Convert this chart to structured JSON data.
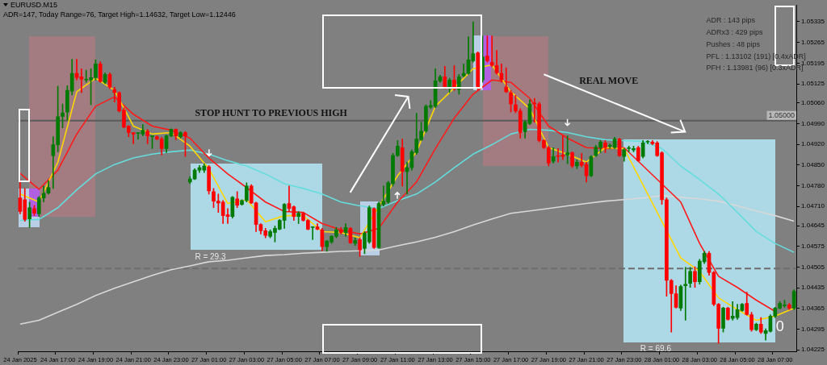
{
  "chart_data": {
    "type": "candlestick",
    "title": "EURUSD.M15",
    "subtitle": "ADR=147, Today Range=76, Target High=1.14632, Target Low=1.12446",
    "categories": [
      "24 Jan 2025",
      null,
      null,
      null,
      null,
      null,
      null,
      null,
      "24 Jan 17:00",
      null,
      null,
      null,
      null,
      null,
      null,
      null,
      "24 Jan 19:00",
      null,
      null,
      null,
      null,
      null,
      null,
      null,
      "24 Jan 21:00",
      null,
      null,
      null,
      null,
      null,
      null,
      null,
      "24 Jan 23:00",
      null,
      null,
      null,
      null,
      null,
      null,
      null,
      "27 Jan 01:00",
      null,
      null,
      null,
      null,
      null,
      null,
      null,
      "27 Jan 03:00",
      null,
      null,
      null,
      null,
      null,
      null,
      null,
      "27 Jan 05:00",
      null,
      null,
      null,
      null,
      null,
      null,
      null,
      "27 Jan 07:00",
      null,
      null,
      null,
      null,
      null,
      null,
      null,
      "27 Jan 09:00",
      null,
      null,
      null,
      null,
      null,
      null,
      null,
      "27 Jan 11:00",
      null,
      null,
      null,
      null,
      null,
      null,
      null,
      "27 Jan 13:00",
      null,
      null,
      null,
      null,
      null,
      null,
      null,
      "27 Jan 15:00",
      null,
      null,
      null,
      null,
      null,
      null,
      null,
      "27 Jan 17:00",
      null,
      null,
      null,
      null,
      null,
      null,
      null,
      "27 Jan 19:00",
      null,
      null,
      null,
      null,
      null,
      null,
      null,
      "27 Jan 21:00",
      null,
      null,
      null,
      null,
      null,
      null,
      null,
      "27 Jan 23:00",
      null,
      null,
      null,
      null,
      null,
      null,
      null,
      "28 Jan 01:00",
      null,
      null,
      null,
      null,
      null,
      null,
      null,
      "28 Jan 03:00",
      null,
      null,
      null,
      null,
      null,
      null,
      null,
      "28 Jan 05:00",
      null,
      null,
      null,
      null,
      null,
      null,
      null,
      "28 Jan 07:00",
      null,
      null,
      null,
      null
    ],
    "ohlc": [
      [
        1.04739,
        1.04801,
        1.04685,
        1.04693
      ],
      [
        1.04733,
        1.04771,
        1.0466,
        1.04666
      ],
      [
        1.04668,
        1.04725,
        1.04639,
        1.04706
      ],
      [
        1.04703,
        1.04714,
        1.04679,
        1.04687
      ],
      [
        1.04685,
        1.04744,
        1.04676,
        1.04739
      ],
      [
        1.04739,
        1.04779,
        1.04725,
        1.04755
      ],
      [
        1.04755,
        1.04798,
        1.04752,
        1.04774
      ],
      [
        1.04882,
        1.04946,
        1.04771,
        1.04919
      ],
      [
        1.04919,
        1.05117,
        1.04895,
        1.05014
      ],
      [
        1.05014,
        1.05057,
        1.04976,
        1.05027
      ],
      [
        1.0503,
        1.05119,
        1.05003,
        1.05103
      ],
      [
        1.051,
        1.05208,
        1.05087,
        1.0516
      ],
      [
        1.0516,
        1.05208,
        1.05138,
        1.05146
      ],
      [
        1.05149,
        1.05176,
        1.05095,
        1.05141
      ],
      [
        1.05138,
        1.05171,
        1.0513,
        1.05138
      ],
      [
        1.05138,
        1.05176,
        1.05054,
        1.05146
      ],
      [
        1.05146,
        1.05206,
        1.05138,
        1.05192
      ],
      [
        1.05192,
        1.052,
        1.0513,
        1.05133
      ],
      [
        1.0513,
        1.05162,
        1.05125,
        1.05157
      ],
      [
        1.05157,
        1.05162,
        1.05108,
        1.05114
      ],
      [
        1.05106,
        1.05114,
        1.05063,
        1.05095
      ],
      [
        1.05095,
        1.05098,
        1.0503,
        1.05033
      ],
      [
        1.05036,
        1.05044,
        1.04976,
        1.04979
      ],
      [
        1.04982,
        1.04984,
        1.04946,
        1.0496
      ],
      [
        1.0496,
        1.0496,
        1.04922,
        1.04955
      ],
      [
        1.04957,
        1.0496,
        1.04938,
        1.04957
      ],
      [
        1.04955,
        1.04987,
        1.04949,
        1.04968
      ],
      [
        1.04965,
        1.04971,
        1.04922,
        1.04949
      ],
      [
        1.04946,
        1.04949,
        1.04906,
        1.04946
      ],
      [
        1.04946,
        1.04949,
        1.04936,
        1.04938
      ],
      [
        1.04938,
        1.04944,
        1.04884,
        1.04906
      ],
      [
        1.04906,
        1.04952,
        1.04892,
        1.04949
      ],
      [
        1.04949,
        1.04973,
        1.04946,
        1.04971
      ],
      [
        1.04971,
        1.04973,
        1.04936,
        1.04949
      ],
      [
        1.04946,
        1.04963,
        1.04941,
        1.0496
      ],
      [
        1.0496,
        1.04963,
        1.04879,
        1.04949
      ],
      [
        1.04793,
        1.04811,
        1.04787,
        1.04803
      ],
      [
        1.04803,
        1.04838,
        1.04801,
        1.04833
      ],
      [
        1.04833,
        1.04849,
        1.04825,
        1.04841
      ],
      [
        1.04833,
        1.04855,
        1.04825,
        1.04847
      ],
      [
        1.04844,
        1.04849,
        1.04752,
        1.04763
      ],
      [
        1.0476,
        1.04771,
        1.04706,
        1.04728
      ],
      [
        1.04728,
        1.04752,
        1.0469,
        1.04722
      ],
      [
        1.04725,
        1.0473,
        1.04652,
        1.04679
      ],
      [
        1.04682,
        1.04703,
        1.04652,
        1.04676
      ],
      [
        1.04676,
        1.04744,
        1.04671,
        1.04741
      ],
      [
        1.04736,
        1.0476,
        1.04706,
        1.04714
      ],
      [
        1.04717,
        1.04733,
        1.04714,
        1.0473
      ],
      [
        1.0473,
        1.0479,
        1.04725,
        1.04779
      ],
      [
        1.04779,
        1.04784,
        1.0472,
        1.04722
      ],
      [
        1.04722,
        1.04725,
        1.04625,
        1.04649
      ],
      [
        1.04649,
        1.04652,
        1.04617,
        1.04628
      ],
      [
        1.04628,
        1.04636,
        1.04604,
        1.04612
      ],
      [
        1.04609,
        1.04631,
        1.04604,
        1.04625
      ],
      [
        1.04622,
        1.04644,
        1.0459,
        1.04636
      ],
      [
        1.04633,
        1.04666,
        1.04631,
        1.04663
      ],
      [
        1.04663,
        1.0472,
        1.04636,
        1.04717
      ],
      [
        1.0472,
        1.04779,
        1.04693,
        1.04703
      ],
      [
        1.04709,
        1.04712,
        1.04663,
        1.04676
      ],
      [
        1.04676,
        1.04693,
        1.04652,
        1.04687
      ],
      [
        1.04687,
        1.0469,
        1.0466,
        1.04663
      ],
      [
        1.04663,
        1.04666,
        1.04631,
        1.04633
      ],
      [
        1.04639,
        1.04641,
        1.04598,
        1.04639
      ],
      [
        1.04641,
        1.04652,
        1.04631,
        1.04633
      ],
      [
        1.04631,
        1.04636,
        1.0456,
        1.04574
      ],
      [
        1.04574,
        1.04595,
        1.04558,
        1.04593
      ],
      [
        1.0459,
        1.04612,
        1.04585,
        1.04609
      ],
      [
        1.04609,
        1.04639,
        1.04604,
        1.04631
      ],
      [
        1.04631,
        1.04639,
        1.04617,
        1.04622
      ],
      [
        1.04622,
        1.04652,
        1.04609,
        1.04639
      ],
      [
        1.04636,
        1.04639,
        1.04585,
        1.04587
      ],
      [
        1.04585,
        1.04604,
        1.04578,
        1.04595
      ],
      [
        1.04598,
        1.04604,
        1.04541,
        1.04563
      ],
      [
        1.04568,
        1.04625,
        1.0455,
        1.0462
      ],
      [
        1.0459,
        1.04712,
        1.04585,
        1.04706
      ],
      [
        1.04703,
        1.04706,
        1.04568,
        1.04571
      ],
      [
        1.04571,
        1.04725,
        1.04568,
        1.0472
      ],
      [
        1.04717,
        1.04779,
        1.04712,
        1.04728
      ],
      [
        1.04725,
        1.04795,
        1.0472,
        1.0479
      ],
      [
        1.04787,
        1.0489,
        1.04779,
        1.04882
      ],
      [
        1.04882,
        1.04933,
        1.04879,
        1.04914
      ],
      [
        1.04909,
        1.04938,
        1.04779,
        1.04828
      ],
      [
        1.04828,
        1.0486,
        1.04752,
        1.04841
      ],
      [
        1.04841,
        1.04901,
        1.04833,
        1.04895
      ],
      [
        1.04892,
        1.05025,
        1.04887,
        1.04938
      ],
      [
        1.04936,
        1.04995,
        1.04933,
        1.04965
      ],
      [
        1.04965,
        1.05054,
        1.0496,
        1.05049
      ],
      [
        1.05046,
        1.05068,
        1.05041,
        1.05052
      ],
      [
        1.05049,
        1.05176,
        1.05044,
        1.05135
      ],
      [
        1.05135,
        1.05154,
        1.0513,
        1.05149
      ],
      [
        1.05149,
        1.05184,
        1.05108,
        1.05114
      ],
      [
        1.05114,
        1.05144,
        1.05095,
        1.05138
      ],
      [
        1.05138,
        1.05187,
        1.05103,
        1.05108
      ],
      [
        1.05106,
        1.05157,
        1.0509,
        1.05149
      ],
      [
        1.05152,
        1.05192,
        1.05149,
        1.0516
      ],
      [
        1.0516,
        1.05284,
        1.05157,
        1.05206
      ],
      [
        1.05203,
        1.05335,
        1.05198,
        1.05227
      ],
      [
        1.0523,
        1.05233,
        1.05103,
        1.05114
      ],
      [
        1.05138,
        1.05287,
        1.0513,
        1.05216
      ],
      [
        1.05219,
        1.05287,
        1.05198,
        1.05203
      ],
      [
        1.05198,
        1.05287,
        1.05184,
        1.05187
      ],
      [
        1.05187,
        1.05238,
        1.05157,
        1.05162
      ],
      [
        1.0516,
        1.05192,
        1.0513,
        1.05138
      ],
      [
        1.05114,
        1.05179,
        1.05095,
        1.05098
      ],
      [
        1.05095,
        1.05103,
        1.0503,
        1.05057
      ],
      [
        1.05054,
        1.05086,
        1.05027,
        1.05033
      ],
      [
        1.05033,
        1.05041,
        1.04941,
        1.0496
      ],
      [
        1.04963,
        1.05,
        1.04941,
        1.04995
      ],
      [
        1.0499,
        1.05071,
        1.04987,
        1.05057
      ],
      [
        1.0506,
        1.05076,
        1.04995,
        1.05057
      ],
      [
        1.05057,
        1.05063,
        1.04928,
        1.04933
      ],
      [
        1.04933,
        1.04936,
        1.04906,
        1.04909
      ],
      [
        1.04909,
        1.04914,
        1.04847,
        1.04857
      ],
      [
        1.04863,
        1.04909,
        1.04857,
        1.04879
      ],
      [
        1.04882,
        1.04906,
        1.0486,
        1.04879
      ],
      [
        1.04884,
        1.04949,
        1.04868,
        1.04879
      ],
      [
        1.04884,
        1.04949,
        1.04855,
        1.04892
      ],
      [
        1.04892,
        1.04895,
        1.04841,
        1.04847
      ],
      [
        1.04847,
        1.04868,
        1.04838,
        1.0486
      ],
      [
        1.0486,
        1.0489,
        1.04844,
        1.04849
      ],
      [
        1.04852,
        1.0486,
        1.04793,
        1.04814
      ],
      [
        1.04814,
        1.04882,
        1.04811,
        1.04879
      ],
      [
        1.04882,
        1.04917,
        1.04879,
        1.04911
      ],
      [
        1.04909,
        1.04933,
        1.04892,
        1.04928
      ],
      [
        1.04925,
        1.04933,
        1.04892,
        1.04909
      ],
      [
        1.04914,
        1.04922,
        1.04906,
        1.04914
      ],
      [
        1.04909,
        1.04944,
        1.04906,
        1.04938
      ],
      [
        1.04938,
        1.04941,
        1.04879,
        1.04882
      ],
      [
        1.04879,
        1.04906,
        1.04863,
        1.04901
      ],
      [
        1.04906,
        1.04914,
        1.04895,
        1.04906
      ],
      [
        1.04901,
        1.04914,
        1.04895,
        1.04906
      ],
      [
        1.04909,
        1.04914,
        1.04863,
        1.04865
      ],
      [
        1.04879,
        1.04933,
        1.04874,
        1.04925
      ],
      [
        1.04928,
        1.04933,
        1.04922,
        1.04928
      ],
      [
        1.04928,
        1.04933,
        1.04919,
        1.04922
      ],
      [
        1.04925,
        1.0493,
        1.04879,
        1.04882
      ],
      [
        1.04892,
        1.04895,
        1.04717,
        1.04733
      ],
      [
        1.04733,
        1.04739,
        1.04406,
        1.0446
      ],
      [
        1.0446,
        1.04463,
        1.04285,
        1.04415
      ],
      [
        1.04415,
        1.04442,
        1.04366,
        1.04369
      ],
      [
        1.04366,
        1.04444,
        1.04358,
        1.04439
      ],
      [
        1.04442,
        1.04504,
        1.04325,
        1.04447
      ],
      [
        1.0445,
        1.04504,
        1.04436,
        1.0449
      ],
      [
        1.0449,
        1.04506,
        1.04436,
        1.04455
      ],
      [
        1.04455,
        1.04531,
        1.04447,
        1.04525
      ],
      [
        1.04523,
        1.04558,
        1.04517,
        1.04552
      ],
      [
        1.04552,
        1.04558,
        1.04477,
        1.04487
      ],
      [
        1.04487,
        1.0449,
        1.04374,
        1.04379
      ],
      [
        1.04379,
        1.04382,
        1.04247,
        1.04298
      ],
      [
        1.04298,
        1.04369,
        1.04285,
        1.04366
      ],
      [
        1.04366,
        1.04369,
        1.04325,
        1.04328
      ],
      [
        1.04331,
        1.04388,
        1.04325,
        1.04339
      ],
      [
        1.04334,
        1.04379,
        1.04328,
        1.04361
      ],
      [
        1.04358,
        1.04382,
        1.04355,
        1.04379
      ],
      [
        1.04382,
        1.0442,
        1.04342,
        1.04344
      ],
      [
        1.04344,
        1.04352,
        1.04288,
        1.04293
      ],
      [
        1.04293,
        1.04315,
        1.0429,
        1.04312
      ],
      [
        1.04312,
        1.04334,
        1.0428,
        1.04285
      ],
      [
        1.0428,
        1.04296,
        1.04258,
        1.0429
      ],
      [
        1.04288,
        1.04344,
        1.04285,
        1.04339
      ],
      [
        1.04339,
        1.04369,
        1.04334,
        1.04366
      ],
      [
        1.04366,
        1.04388,
        1.04363,
        1.04382
      ],
      [
        1.04374,
        1.04393,
        1.04369,
        1.04377
      ],
      [
        1.04377,
        1.04382,
        1.04361,
        1.04366
      ],
      [
        1.04366,
        1.04428,
        1.04361,
        1.04423
      ]
    ],
    "colors": [
      "#ff0000",
      "#ff0000",
      "#007a00",
      "#ff0000",
      "#007a00",
      "#007a00",
      "#007a00",
      "#007a00",
      "#007a00",
      "#007a00",
      "#007a00",
      "#007a00",
      "#ff0000",
      "#ff0000",
      "#007a00",
      "#007a00",
      "#007a00",
      "#ff0000",
      "#007a00",
      "#ff0000",
      "#ff0000",
      "#ff0000",
      "#ff0000",
      "#ff0000",
      "#ff0000",
      "#007a00",
      "#007a00",
      "#ff0000",
      "#007a00",
      "#ff0000",
      "#ff0000",
      "#007a00",
      "#007a00",
      "#ff0000",
      "#007a00",
      "#ff0000",
      "#007a00",
      "#007a00",
      "#007a00",
      "#007a00",
      "#ff0000",
      "#ff0000",
      "#ff0000",
      "#ff0000",
      "#ff0000",
      "#007a00",
      "#ff0000",
      "#007a00",
      "#007a00",
      "#ff0000",
      "#ff0000",
      "#ff0000",
      "#ff0000",
      "#007a00",
      "#007a00",
      "#007a00",
      "#007a00",
      "#ff0000",
      "#ff0000",
      "#007a00",
      "#ff0000",
      "#ff0000",
      "#007a00",
      "#ff0000",
      "#ff0000",
      "#007a00",
      "#007a00",
      "#007a00",
      "#ff0000",
      "#007a00",
      "#ff0000",
      "#007a00",
      "#ff0000",
      "#007a00",
      "#007a00",
      "#ff0000",
      "#007a00",
      "#007a00",
      "#007a00",
      "#007a00",
      "#007a00",
      "#ff0000",
      "#007a00",
      "#007a00",
      "#007a00",
      "#007a00",
      "#007a00",
      "#007a00",
      "#007a00",
      "#007a00",
      "#ff0000",
      "#007a00",
      "#ff0000",
      "#007a00",
      "#007a00",
      "#007a00",
      "#007a00",
      "#ff0000",
      "#007a00",
      "#ff0000",
      "#ff0000",
      "#ff0000",
      "#ff0000",
      "#ff0000",
      "#ff0000",
      "#ff0000",
      "#ff0000",
      "#007a00",
      "#007a00",
      "#ff0000",
      "#ff0000",
      "#ff0000",
      "#ff0000",
      "#007a00",
      "#ff0000",
      "#ff0000",
      "#007a00",
      "#ff0000",
      "#007a00",
      "#ff0000",
      "#ff0000",
      "#007a00",
      "#007a00",
      "#007a00",
      "#ff0000",
      "#007a00",
      "#007a00",
      "#ff0000",
      "#007a00",
      "#007a00",
      "#007a00",
      "#ff0000",
      "#007a00",
      "#007a00",
      "#ff0000",
      "#ff0000",
      "#ff0000",
      "#ff0000",
      "#ff0000",
      "#ff0000",
      "#007a00",
      "#007a00",
      "#007a00",
      "#ff0000",
      "#007a00",
      "#007a00",
      "#ff0000",
      "#ff0000",
      "#ff0000",
      "#007a00",
      "#ff0000",
      "#007a00",
      "#007a00",
      "#007a00",
      "#ff0000",
      "#ff0000",
      "#007a00",
      "#ff0000",
      "#007a00",
      "#007a00",
      "#007a00",
      "#007a00",
      "#007a00",
      "#ff0000",
      "#007a00"
    ],
    "series": [
      {
        "type": "line",
        "color": "#ffd700",
        "values": [
          1.04752,
          null,
          null,
          null,
          1.04725,
          null,
          null,
          null,
          1.0486,
          null,
          null,
          null,
          1.05098,
          null,
          null,
          null,
          1.05144,
          null,
          null,
          null,
          1.05103,
          null,
          null,
          null,
          1.04982,
          null,
          null,
          null,
          1.04955,
          null,
          null,
          null,
          1.0496,
          null,
          null,
          null,
          1.04914,
          null,
          null,
          null,
          1.04838,
          null,
          null,
          null,
          1.0472,
          null,
          null,
          null,
          1.04733,
          null,
          null,
          null,
          1.04658,
          null,
          null,
          null,
          1.04679,
          null,
          null,
          null,
          1.04679,
          null,
          null,
          null,
          1.04625,
          null,
          null,
          null,
          1.04622,
          null,
          null,
          null,
          1.04604,
          null,
          null,
          null,
          null,
          null,
          null,
          null,
          1.04814,
          null,
          null,
          null,
          1.04895,
          null,
          null,
          null,
          1.05049,
          null,
          null,
          null,
          1.05111,
          null,
          null,
          null,
          1.05176,
          null,
          null,
          null,
          1.05189,
          null,
          null,
          null,
          1.05098,
          null,
          null,
          null,
          1.05041,
          null,
          null,
          null,
          1.04909,
          null,
          null,
          null,
          1.04887,
          null,
          null,
          null,
          1.0486,
          null,
          null,
          null,
          1.04909,
          null,
          null,
          null,
          1.04906,
          null,
          null,
          null,
          null,
          null,
          null,
          null,
          null,
          null,
          null,
          null,
          1.04536,
          null,
          null,
          null,
          1.0449,
          null,
          null,
          null,
          1.04401,
          null,
          null,
          null,
          1.04361,
          null,
          null,
          null,
          1.04325,
          null,
          null,
          null,
          1.04339,
          null,
          null,
          null,
          1.04366
        ]
      },
      {
        "type": "line",
        "color": "#ff1a1a",
        "values": [
          1.04822,
          null,
          null,
          null,
          1.04768,
          null,
          null,
          null,
          1.04833,
          null,
          null,
          null,
          1.04955,
          null,
          null,
          null,
          1.05049,
          null,
          null,
          null,
          1.05081,
          null,
          null,
          null,
          1.05022,
          null,
          null,
          null,
          1.04982,
          null,
          null,
          null,
          1.04968,
          null,
          null,
          null,
          1.04941,
          null,
          null,
          null,
          1.04874,
          null,
          null,
          null,
          1.0482,
          null,
          null,
          null,
          1.04774,
          null,
          null,
          null,
          1.04725,
          null,
          null,
          null,
          1.04693,
          null,
          null,
          null,
          1.0469,
          null,
          null,
          null,
          1.04652,
          null,
          null,
          null,
          1.04631,
          null,
          null,
          null,
          1.04617,
          null,
          null,
          null,
          1.04636,
          null,
          null,
          null,
          1.04725,
          null,
          null,
          null,
          1.04793,
          null,
          null,
          null,
          1.04906,
          null,
          null,
          null,
          1.05009,
          null,
          null,
          null,
          1.0509,
          null,
          null,
          null,
          1.05138,
          null,
          null,
          null,
          1.0513,
          null,
          null,
          null,
          1.05076,
          null,
          null,
          null,
          1.04982,
          null,
          null,
          null,
          1.04941,
          null,
          null,
          null,
          1.04909,
          null,
          null,
          null,
          1.04906,
          null,
          null,
          null,
          1.04909,
          null,
          null,
          null,
          null,
          null,
          null,
          null,
          null,
          null,
          null,
          null,
          1.04725,
          null,
          null,
          null,
          1.04585,
          null,
          null,
          null,
          1.04474,
          null,
          null,
          null,
          1.04436,
          null,
          null,
          null,
          1.04393,
          null,
          null,
          null,
          1.04355,
          null,
          null,
          null,
          null
        ]
      },
      {
        "type": "line",
        "color": "#66dddd",
        "values": [
          1.04663,
          null,
          null,
          null,
          1.04666,
          null,
          null,
          null,
          1.04706,
          null,
          null,
          null,
          1.04766,
          null,
          null,
          null,
          1.0482,
          null,
          null,
          null,
          1.04852,
          null,
          null,
          null,
          1.04874,
          null,
          null,
          null,
          1.04887,
          null,
          null,
          null,
          1.04895,
          null,
          null,
          null,
          1.04901,
          null,
          null,
          null,
          1.04887,
          null,
          null,
          null,
          1.04865,
          null,
          null,
          null,
          1.04847,
          null,
          null,
          null,
          1.0482,
          null,
          null,
          null,
          1.04787,
          null,
          null,
          null,
          1.04771,
          null,
          null,
          null,
          1.04752,
          null,
          null,
          null,
          1.04725,
          null,
          null,
          null,
          1.04712,
          null,
          null,
          null,
          1.04703,
          null,
          null,
          null,
          1.0473,
          null,
          null,
          null,
          1.04752,
          null,
          null,
          null,
          1.04793,
          null,
          null,
          null,
          1.04841,
          null,
          null,
          null,
          1.04887,
          null,
          null,
          null,
          1.04919,
          null,
          null,
          null,
          1.04955,
          null,
          null,
          null,
          1.04971,
          null,
          null,
          null,
          1.04968,
          null,
          null,
          null,
          1.0496,
          null,
          null,
          null,
          1.04946,
          null,
          null,
          null,
          1.04936,
          null,
          null,
          null,
          1.04933,
          null,
          null,
          null,
          1.0493,
          null,
          null,
          null,
          1.04906,
          null,
          null,
          null,
          1.04847,
          null,
          null,
          null,
          1.04801,
          null,
          null,
          null,
          1.04752,
          null,
          null,
          null,
          1.0469,
          null,
          null,
          null,
          1.04625,
          null,
          null,
          null,
          1.04585,
          null,
          null,
          null,
          1.04555
        ]
      },
      {
        "type": "line",
        "color": "#d8d8d8",
        "values": [
          1.04312,
          null,
          null,
          null,
          1.04325,
          null,
          null,
          null,
          1.04352,
          null,
          null,
          null,
          1.04379,
          null,
          null,
          null,
          1.04409,
          null,
          null,
          null,
          1.04433,
          null,
          null,
          null,
          1.04455,
          null,
          null,
          null,
          1.04477,
          null,
          null,
          null,
          1.04496,
          null,
          null,
          null,
          1.04509,
          null,
          null,
          null,
          1.04523,
          null,
          null,
          null,
          1.04528,
          null,
          null,
          null,
          1.04536,
          null,
          null,
          null,
          1.04544,
          null,
          null,
          null,
          1.04547,
          null,
          null,
          null,
          1.04552,
          null,
          null,
          null,
          1.04555,
          null,
          null,
          null,
          1.04558,
          null,
          null,
          null,
          1.0456,
          null,
          null,
          null,
          1.04563,
          null,
          null,
          null,
          1.04577,
          null,
          null,
          null,
          1.0459,
          null,
          null,
          null,
          1.04606,
          null,
          null,
          null,
          1.04625,
          null,
          null,
          null,
          1.04647,
          null,
          null,
          null,
          1.04668,
          null,
          null,
          null,
          1.04687,
          null,
          null,
          null,
          1.04695,
          null,
          null,
          null,
          1.04703,
          null,
          null,
          null,
          1.04712,
          null,
          null,
          null,
          1.0472,
          null,
          null,
          null,
          1.04728,
          null,
          null,
          null,
          1.04733,
          null,
          null,
          null,
          1.04739,
          null,
          null,
          null,
          1.04747,
          null,
          null,
          null,
          1.04741,
          null,
          null,
          null,
          1.04736,
          null,
          null,
          null,
          1.04728,
          null,
          null,
          null,
          1.04712,
          null,
          null,
          null,
          1.04695,
          null,
          null,
          null,
          1.04679,
          null,
          null,
          null,
          1.0466
        ]
      }
    ],
    "ylim": [
      1.0422,
      1.0539
    ],
    "yticks": [
      1.05335,
      1.05265,
      1.05195,
      1.05125,
      {
        "value": 1.0506,
        "label": "1.05060"
      },
      {
        "value": 1.0499,
        "label": "1.04990"
      },
      {
        "value": 1.0492,
        "label": "1.04920"
      },
      {
        "value": 1.0485,
        "label": "1.04850"
      },
      {
        "value": 1.0478,
        "label": "1.04780"
      },
      {
        "value": 1.0471,
        "label": "1.04710"
      },
      1.04645,
      1.04575,
      1.04505,
      1.04435,
      1.04365,
      1.04295,
      1.04225
    ],
    "ref_lines": [
      {
        "axis": "y",
        "value": 1.05,
        "label": "1.05000",
        "color": "#5a5a5a"
      },
      {
        "axis": "y",
        "value": 1.045,
        "color": "#6e6e6e",
        "line_style": "dashed"
      }
    ],
    "annotations": [
      "STOP HUNT TO PREVIOUS HIGH",
      "REAL MOVE",
      "R = 29.3",
      "R = 69.6",
      "0",
      "ADR : 143 pips",
      "ADRx3 : 429 pips",
      "Pushes : 48 pips",
      "PFL : 1.13102 (191) [0.4xADR]",
      "PFH : 1.13981 (96) [0.3xADR]"
    ]
  }
}
